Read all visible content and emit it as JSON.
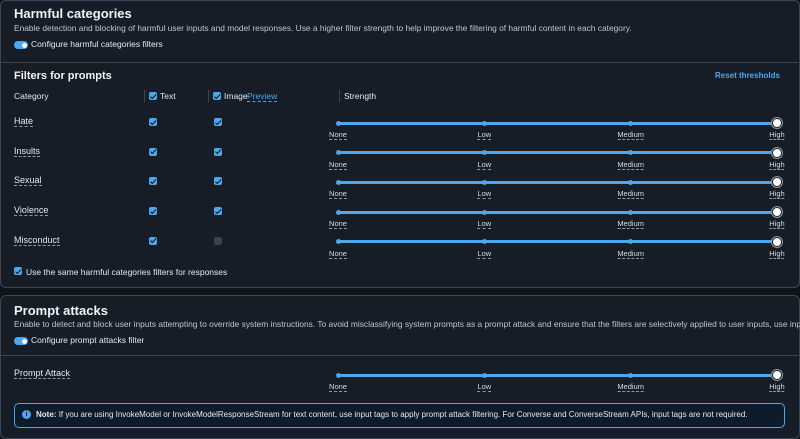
{
  "harmful": {
    "title": "Harmful categories",
    "description": "Enable detection and blocking of harmful user inputs and model responses. Use a higher filter strength to help improve the filtering of harmful content in each category.",
    "toggle_label": "Configure harmful categories filters",
    "toggle_on": true
  },
  "filters": {
    "title": "Filters for prompts",
    "reset": "Reset thresholds",
    "headers": {
      "category": "Category",
      "text": "Text",
      "image": "Image",
      "preview": "Preview",
      "strength": "Strength"
    },
    "header_text_checked": true,
    "header_image_checked": true,
    "levels": [
      "None",
      "Low",
      "Medium",
      "High"
    ],
    "rows": [
      {
        "category": "Hate",
        "text": true,
        "image": true,
        "strength": 3
      },
      {
        "category": "Insults",
        "text": true,
        "image": true,
        "strength": 3
      },
      {
        "category": "Sexual",
        "text": true,
        "image": true,
        "strength": 3
      },
      {
        "category": "Violence",
        "text": true,
        "image": true,
        "strength": 3
      },
      {
        "category": "Misconduct",
        "text": true,
        "image": false,
        "strength": 3
      }
    ],
    "same_filters_label": "Use the same harmful categories filters for responses",
    "same_filters_checked": true
  },
  "prompt_attacks": {
    "title": "Prompt attacks",
    "description": "Enable to detect and block user inputs attempting to override system instructions. To avoid misclassifying system prompts as a prompt attack and ensure that the filters are selectively applied to user inputs, use input tagging.",
    "toggle_label": "Configure prompt attacks filter",
    "toggle_on": true,
    "row": {
      "category": "Prompt Attack",
      "strength": 3
    }
  },
  "note": {
    "label": "Note:",
    "text": "If you are using InvokeModel or InvokeModelResponseStream for text content, use input tags to apply prompt attack filtering. For Converse and ConverseStream APIs, input tags are not required."
  }
}
